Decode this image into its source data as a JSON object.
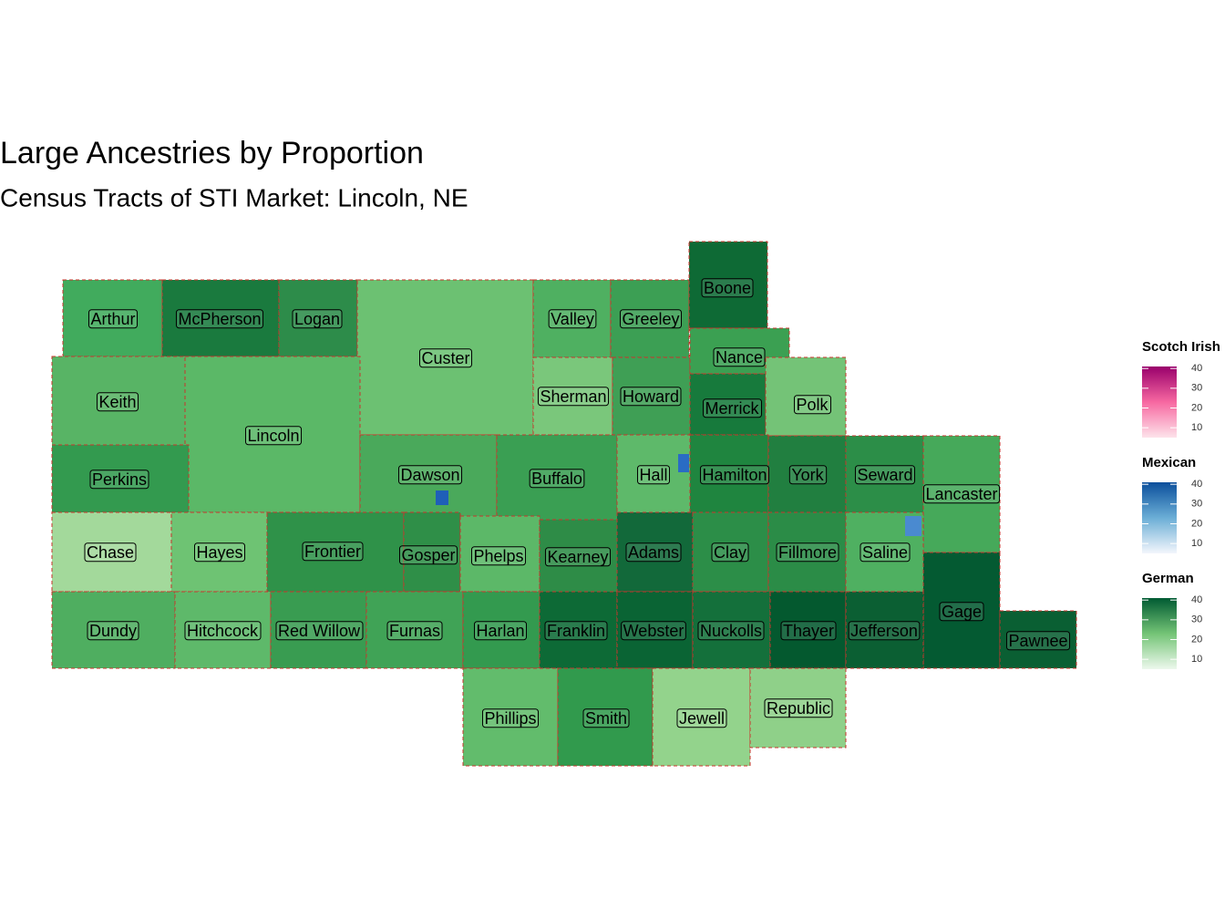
{
  "title": "Large Ancestries by Proportion",
  "subtitle": "Census Tracts of STI Market: Lincoln, NE",
  "counties": [
    "Arthur",
    "McPherson",
    "Logan",
    "Custer",
    "Valley",
    "Greeley",
    "Boone",
    "Keith",
    "Lincoln",
    "Sherman",
    "Howard",
    "Nance",
    "Merrick",
    "Polk",
    "Perkins",
    "Dawson",
    "Buffalo",
    "Hall",
    "Hamilton",
    "York",
    "Seward",
    "Lancaster",
    "Chase",
    "Hayes",
    "Frontier",
    "Gosper",
    "Phelps",
    "Kearney",
    "Adams",
    "Clay",
    "Fillmore",
    "Saline",
    "Gage",
    "Dundy",
    "Hitchcock",
    "Red Willow",
    "Furnas",
    "Harlan",
    "Franklin",
    "Webster",
    "Nuckolls",
    "Thayer",
    "Jefferson",
    "Pawnee",
    "Phillips",
    "Smith",
    "Jewell",
    "Republic"
  ],
  "legends": [
    {
      "title": "Scotch Irish",
      "colors": [
        "#fde3ea",
        "#f768a1",
        "#99006b"
      ],
      "lim": [
        5,
        41
      ],
      "ticks": [
        10,
        20,
        30,
        40
      ]
    },
    {
      "title": "Mexican",
      "colors": [
        "#f3f6fc",
        "#6baed6",
        "#0b4f9c"
      ],
      "lim": [
        5,
        41
      ],
      "ticks": [
        10,
        20,
        30,
        40
      ]
    },
    {
      "title": "German",
      "colors": [
        "#edf8ed",
        "#74c476",
        "#005a32"
      ],
      "lim": [
        5,
        41
      ],
      "ticks": [
        10,
        20,
        30,
        40
      ]
    }
  ]
}
